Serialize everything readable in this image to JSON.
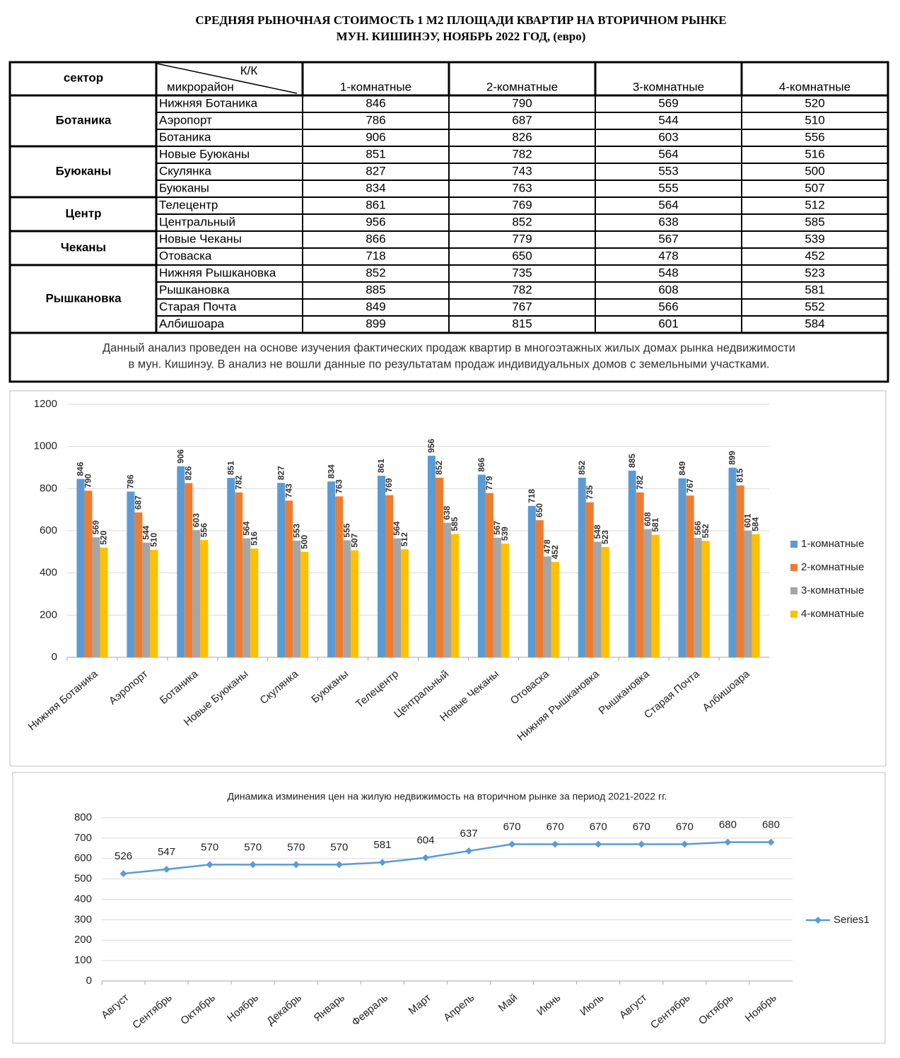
{
  "header": {
    "title_lines": [
      "СРЕДНЯЯ  РЫНОЧНАЯ  СТОИМОСТЬ  1 М2  ПЛОЩАДИ  КВАРТИР НА ВТОРИЧНОМ РЫНКЕ",
      "МУН.  КИШИНЭУ, НОЯБРЬ 2022 ГОД, (евро)"
    ]
  },
  "table": {
    "sector_header": "сектор",
    "corner_top": "К/К",
    "corner_bottom": "микрорайон",
    "columns": [
      "1-комнатные",
      "2-комнатные",
      "3-комнатные",
      "4-комнатные"
    ],
    "sectors": [
      {
        "name": "Ботаника",
        "rows": [
          {
            "district": "Нижняя Ботаника",
            "values": [
              846,
              790,
              569,
              520
            ]
          },
          {
            "district": "Аэропорт",
            "values": [
              786,
              687,
              544,
              510
            ]
          },
          {
            "district": "Ботаника",
            "values": [
              906,
              826,
              603,
              556
            ]
          }
        ]
      },
      {
        "name": "Буюканы",
        "rows": [
          {
            "district": "Новые Буюканы",
            "values": [
              851,
              782,
              564,
              516
            ]
          },
          {
            "district": "Скулянка",
            "values": [
              827,
              743,
              553,
              500
            ]
          },
          {
            "district": "Буюканы",
            "values": [
              834,
              763,
              555,
              507
            ]
          }
        ]
      },
      {
        "name": "Центр",
        "rows": [
          {
            "district": "Телецентр",
            "values": [
              861,
              769,
              564,
              512
            ]
          },
          {
            "district": "Центральный",
            "values": [
              956,
              852,
              638,
              585
            ]
          }
        ]
      },
      {
        "name": "Чеканы",
        "rows": [
          {
            "district": "Новые Чеканы",
            "values": [
              866,
              779,
              567,
              539
            ]
          },
          {
            "district": "Отоваска",
            "values": [
              718,
              650,
              478,
              452
            ]
          }
        ]
      },
      {
        "name": "Рышкановка",
        "rows": [
          {
            "district": "Нижняя Рышкановка",
            "values": [
              852,
              735,
              548,
              523
            ]
          },
          {
            "district": "Рышкановка",
            "values": [
              885,
              782,
              608,
              581
            ]
          },
          {
            "district": "Старая Почта",
            "values": [
              849,
              767,
              566,
              552
            ]
          },
          {
            "district": "Албишоара",
            "values": [
              899,
              815,
              601,
              584
            ]
          }
        ]
      }
    ]
  },
  "note": [
    "Данный анализ проведен на основе изучения фактических продаж квартир в многоэтажных жилых домах рынка недвижимости",
    "в мун. Кишинэу. В анализ не вошли данные по результатам  продаж индивидуальных домов с земельными участками."
  ],
  "chart_data": [
    {
      "type": "bar",
      "categories": [
        "Нижняя Ботаника",
        "Аэропорт",
        "Ботаника",
        "Новые Буюканы",
        "Скулянка",
        "Буюканы",
        "Телецентр",
        "Центральный",
        "Новые Чеканы",
        "Отоваска",
        "Нижняя Рышкановка",
        "Рышкановка",
        "Старая Почта",
        "Албишоара"
      ],
      "series": [
        {
          "name": "1-комнатные",
          "color": "#5b9bd5",
          "values": [
            846,
            786,
            906,
            851,
            827,
            834,
            861,
            956,
            866,
            718,
            852,
            885,
            849,
            899
          ]
        },
        {
          "name": "2-комнатные",
          "color": "#ed7d31",
          "values": [
            790,
            687,
            826,
            782,
            743,
            763,
            769,
            852,
            779,
            650,
            735,
            782,
            767,
            815
          ]
        },
        {
          "name": "3-комнатные",
          "color": "#a5a5a5",
          "values": [
            569,
            544,
            603,
            564,
            553,
            555,
            564,
            638,
            567,
            478,
            548,
            608,
            566,
            601
          ]
        },
        {
          "name": "4-комнатные",
          "color": "#ffc000",
          "values": [
            520,
            510,
            556,
            516,
            500,
            507,
            512,
            585,
            539,
            452,
            523,
            581,
            552,
            584
          ]
        }
      ],
      "ylim": [
        0,
        1200
      ],
      "yticks": [
        0,
        200,
        400,
        600,
        800,
        1000,
        1200
      ],
      "grid": true,
      "legend": "right"
    },
    {
      "type": "line",
      "title": "Динамика изминения цен на жилую недвижимость на вторичном рынке за период 2021-2022 гг.",
      "categories": [
        "Август",
        "Сентябрь",
        "Октябрь",
        "Ноябрь",
        "Декабрь",
        "Январь",
        "Февраль",
        "Март",
        "Апрель",
        "Май",
        "Июнь",
        "Июль",
        "Август",
        "Сентябрь",
        "Октябрь",
        "Ноябрь"
      ],
      "series": [
        {
          "name": "Series1",
          "color": "#5b9bd5",
          "values": [
            526,
            547,
            570,
            570,
            570,
            570,
            581,
            604,
            637,
            670,
            670,
            670,
            670,
            670,
            680,
            680
          ]
        }
      ],
      "ylim": [
        0,
        800
      ],
      "yticks": [
        0,
        100,
        200,
        300,
        400,
        500,
        600,
        700,
        800
      ],
      "grid": true,
      "legend": "right"
    }
  ]
}
